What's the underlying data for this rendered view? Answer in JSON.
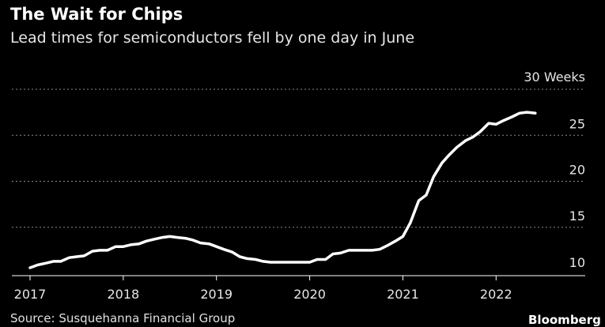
{
  "chart_data": {
    "type": "line",
    "title": "The Wait for Chips",
    "subtitle": "Lead times for semiconductors fell by one day in June",
    "source": "Source: Susquehanna Financial Group",
    "brand": "Bloomberg",
    "y_unit_label": "Weeks",
    "ylim": [
      10,
      30
    ],
    "yticks": [
      {
        "value": 30,
        "label": "30"
      },
      {
        "value": 25,
        "label": "25"
      },
      {
        "value": 20,
        "label": "20"
      },
      {
        "value": 15,
        "label": "15"
      },
      {
        "value": 10,
        "label": "10"
      }
    ],
    "xlim": [
      2017.0,
      2022.6
    ],
    "xticks": [
      {
        "value": 2017,
        "label": "2017"
      },
      {
        "value": 2018,
        "label": "2018"
      },
      {
        "value": 2019,
        "label": "2019"
      },
      {
        "value": 2020,
        "label": "2020"
      },
      {
        "value": 2021,
        "label": "2021"
      },
      {
        "value": 2022,
        "label": "2022"
      }
    ],
    "grid": true,
    "line_color": "#ffffff",
    "series": [
      {
        "x": [
          2017.0,
          2017.08,
          2017.17,
          2017.25,
          2017.33,
          2017.42,
          2017.5,
          2017.58,
          2017.67,
          2017.75,
          2017.83,
          2017.92,
          2018.0,
          2018.08,
          2018.17,
          2018.25,
          2018.33,
          2018.42,
          2018.5,
          2018.58,
          2018.67,
          2018.75,
          2018.83,
          2018.92,
          2019.0,
          2019.08,
          2019.17,
          2019.25,
          2019.33,
          2019.42,
          2019.5,
          2019.58,
          2019.67,
          2019.75,
          2019.83,
          2019.92,
          2020.0,
          2020.08,
          2020.17,
          2020.25,
          2020.33,
          2020.42,
          2020.5,
          2020.58,
          2020.67,
          2020.75,
          2020.83,
          2020.92,
          2021.0,
          2021.08,
          2021.17,
          2021.25,
          2021.33,
          2021.42,
          2021.5,
          2021.58,
          2021.67,
          2021.75,
          2021.83,
          2021.92,
          2022.0,
          2022.08,
          2022.17,
          2022.25,
          2022.33,
          2022.42
        ],
        "values": [
          10.6,
          10.9,
          11.1,
          11.3,
          11.3,
          11.7,
          11.8,
          11.9,
          12.4,
          12.5,
          12.5,
          12.9,
          12.9,
          13.1,
          13.2,
          13.5,
          13.7,
          13.9,
          14.0,
          13.9,
          13.8,
          13.6,
          13.3,
          13.2,
          12.9,
          12.6,
          12.3,
          11.8,
          11.6,
          11.5,
          11.3,
          11.2,
          11.2,
          11.2,
          11.2,
          11.2,
          11.2,
          11.5,
          11.5,
          12.1,
          12.2,
          12.5,
          12.5,
          12.5,
          12.5,
          12.6,
          13.0,
          13.5,
          14.0,
          15.5,
          17.9,
          18.5,
          20.5,
          22.0,
          22.9,
          23.7,
          24.4,
          24.8,
          25.4,
          26.3,
          26.2,
          26.6,
          27.0,
          27.4,
          27.5,
          27.4
        ]
      }
    ]
  }
}
